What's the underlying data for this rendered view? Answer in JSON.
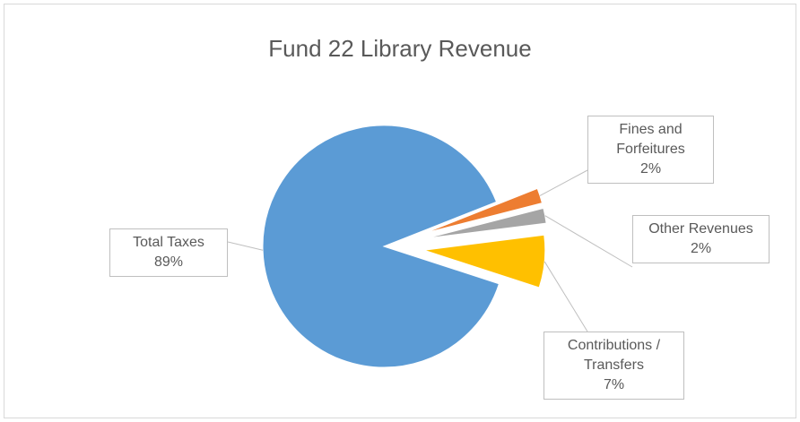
{
  "chart_data": {
    "type": "pie",
    "title": "Fund 22 Library Revenue",
    "categories": [
      "Total Taxes",
      "Fines and Forfeitures",
      "Other Revenues",
      "Contributions / Transfers"
    ],
    "values": [
      89,
      2,
      2,
      7
    ],
    "value_labels": [
      "89%",
      "2%",
      "2%",
      "7%"
    ],
    "colors": [
      "#5b9bd5",
      "#ed7d31",
      "#a5a5a5",
      "#ffc000"
    ]
  }
}
